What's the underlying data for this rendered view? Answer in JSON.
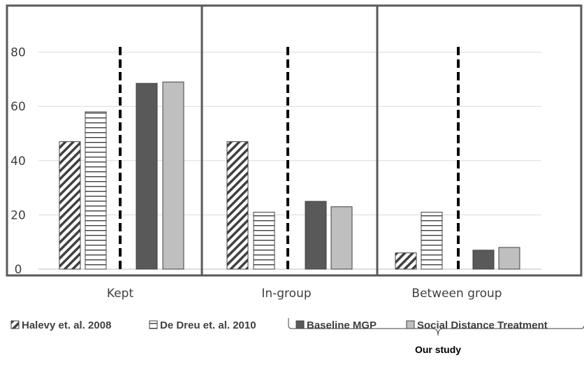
{
  "chart_data": {
    "type": "bar",
    "title": "",
    "xlabel": "",
    "ylabel": "",
    "categories": [
      "Kept",
      "In-group",
      "Between group"
    ],
    "yticks": [
      "0",
      "20",
      "40",
      "60",
      "80"
    ],
    "ylim": [
      0,
      95
    ],
    "grid": true,
    "legend_position": "bottom",
    "series": [
      {
        "name": "Halevy et. al. 2008",
        "values": [
          47,
          47,
          6
        ],
        "pattern": "diagonal-hatch"
      },
      {
        "name": "De Dreu et. al. 2010",
        "values": [
          58,
          21,
          21
        ],
        "pattern": "horizontal-stripes"
      },
      {
        "name": "Baseline MGP",
        "values": [
          68.5,
          25,
          7
        ],
        "color": "#595959"
      },
      {
        "name": "Social Distance Treatment",
        "values": [
          69,
          23,
          8
        ],
        "color": "#bfbfbf"
      }
    ],
    "divider_style": "dashed vertical line between prior studies and our study in each group",
    "legend_bracket_label": "Our study"
  }
}
